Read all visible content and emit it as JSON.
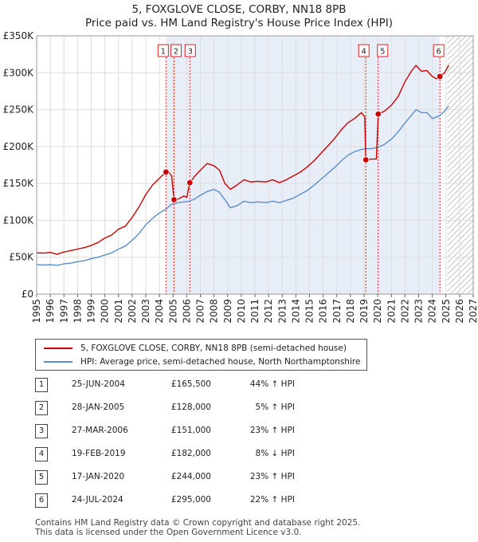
{
  "chart_data": {
    "type": "line",
    "title": "5, FOXGLOVE CLOSE, CORBY, NN18 8PB",
    "subtitle": "Price paid vs. HM Land Registry's House Price Index (HPI)",
    "xlim": [
      1995,
      2027
    ],
    "ylim": [
      0,
      350000
    ],
    "x_ticks": [
      1995,
      1996,
      1997,
      1998,
      1999,
      2000,
      2001,
      2002,
      2003,
      2004,
      2005,
      2006,
      2007,
      2008,
      2009,
      2010,
      2011,
      2012,
      2013,
      2014,
      2015,
      2016,
      2017,
      2018,
      2019,
      2020,
      2021,
      2022,
      2023,
      2024,
      2025,
      2026,
      2027
    ],
    "y_ticks": [
      0,
      50000,
      100000,
      150000,
      200000,
      250000,
      300000,
      350000
    ],
    "y_tick_labels": [
      "£0",
      "£50K",
      "£100K",
      "£150K",
      "£200K",
      "£250K",
      "£300K",
      "£350K"
    ],
    "grid": true,
    "shaded_region": {
      "from": 2004.48,
      "to": 2024.56
    },
    "future_hatch_from": 2025.1,
    "series": [
      {
        "name": "5, FOXGLOVE CLOSE, CORBY, NN18 8PB (semi-detached house)",
        "color": "#cc0000",
        "points": [
          [
            1995.0,
            56000
          ],
          [
            1995.5,
            55500
          ],
          [
            1996.0,
            56500
          ],
          [
            1996.5,
            54000
          ],
          [
            1997.0,
            57000
          ],
          [
            1997.5,
            59000
          ],
          [
            1998.0,
            61000
          ],
          [
            1998.5,
            63000
          ],
          [
            1999.0,
            66000
          ],
          [
            1999.5,
            70000
          ],
          [
            2000.0,
            76000
          ],
          [
            2000.5,
            80000
          ],
          [
            2001.0,
            88000
          ],
          [
            2001.5,
            92000
          ],
          [
            2002.0,
            104000
          ],
          [
            2002.5,
            118000
          ],
          [
            2003.0,
            135000
          ],
          [
            2003.5,
            148000
          ],
          [
            2004.0,
            157000
          ],
          [
            2004.48,
            165500
          ],
          [
            2004.6,
            168000
          ],
          [
            2004.9,
            160000
          ],
          [
            2005.07,
            128000
          ],
          [
            2005.4,
            129000
          ],
          [
            2005.8,
            133000
          ],
          [
            2006.0,
            131000
          ],
          [
            2006.23,
            151000
          ],
          [
            2006.6,
            160000
          ],
          [
            2007.0,
            168000
          ],
          [
            2007.5,
            177000
          ],
          [
            2008.0,
            174000
          ],
          [
            2008.4,
            168000
          ],
          [
            2008.8,
            150000
          ],
          [
            2009.2,
            142000
          ],
          [
            2009.7,
            148000
          ],
          [
            2010.2,
            155000
          ],
          [
            2010.7,
            152000
          ],
          [
            2011.2,
            153000
          ],
          [
            2011.8,
            152000
          ],
          [
            2012.3,
            155000
          ],
          [
            2012.8,
            151000
          ],
          [
            2013.3,
            155000
          ],
          [
            2013.8,
            160000
          ],
          [
            2014.3,
            165000
          ],
          [
            2014.8,
            172000
          ],
          [
            2015.3,
            180000
          ],
          [
            2015.8,
            190000
          ],
          [
            2016.3,
            200000
          ],
          [
            2016.8,
            210000
          ],
          [
            2017.3,
            222000
          ],
          [
            2017.8,
            232000
          ],
          [
            2018.3,
            238000
          ],
          [
            2018.8,
            246000
          ],
          [
            2019.05,
            240000
          ],
          [
            2019.13,
            182000
          ],
          [
            2019.5,
            183000
          ],
          [
            2019.9,
            183000
          ],
          [
            2020.04,
            244000
          ],
          [
            2020.5,
            248000
          ],
          [
            2021.0,
            256000
          ],
          [
            2021.5,
            268000
          ],
          [
            2022.0,
            288000
          ],
          [
            2022.5,
            303000
          ],
          [
            2022.8,
            310000
          ],
          [
            2023.2,
            302000
          ],
          [
            2023.6,
            303000
          ],
          [
            2024.0,
            295000
          ],
          [
            2024.3,
            292000
          ],
          [
            2024.56,
            295000
          ],
          [
            2024.9,
            300000
          ],
          [
            2025.2,
            310000
          ]
        ]
      },
      {
        "name": "HPI: Average price, semi-detached house, North Northamptonshire",
        "color": "#5b8fc9",
        "points": [
          [
            1995.0,
            40000
          ],
          [
            1995.5,
            39500
          ],
          [
            1996.0,
            40000
          ],
          [
            1996.5,
            39000
          ],
          [
            1997.0,
            41000
          ],
          [
            1997.5,
            42000
          ],
          [
            1998.0,
            44000
          ],
          [
            1998.5,
            45500
          ],
          [
            1999.0,
            48000
          ],
          [
            1999.5,
            50000
          ],
          [
            2000.0,
            53000
          ],
          [
            2000.5,
            56000
          ],
          [
            2001.0,
            61000
          ],
          [
            2001.5,
            65000
          ],
          [
            2002.0,
            73000
          ],
          [
            2002.5,
            82000
          ],
          [
            2003.0,
            94000
          ],
          [
            2003.5,
            103000
          ],
          [
            2004.0,
            110000
          ],
          [
            2004.48,
            115000
          ],
          [
            2004.9,
            122000
          ],
          [
            2005.4,
            124000
          ],
          [
            2005.8,
            125000
          ],
          [
            2006.2,
            126000
          ],
          [
            2006.6,
            129000
          ],
          [
            2007.0,
            134000
          ],
          [
            2007.5,
            139000
          ],
          [
            2008.0,
            142000
          ],
          [
            2008.4,
            138000
          ],
          [
            2008.8,
            128000
          ],
          [
            2009.2,
            117000
          ],
          [
            2009.7,
            120000
          ],
          [
            2010.2,
            126000
          ],
          [
            2010.7,
            124000
          ],
          [
            2011.2,
            125000
          ],
          [
            2011.8,
            124000
          ],
          [
            2012.3,
            126000
          ],
          [
            2012.8,
            124000
          ],
          [
            2013.3,
            127000
          ],
          [
            2013.8,
            130000
          ],
          [
            2014.3,
            135000
          ],
          [
            2014.8,
            140000
          ],
          [
            2015.3,
            147000
          ],
          [
            2015.8,
            155000
          ],
          [
            2016.3,
            163000
          ],
          [
            2016.8,
            171000
          ],
          [
            2017.3,
            180000
          ],
          [
            2017.8,
            188000
          ],
          [
            2018.3,
            193000
          ],
          [
            2018.8,
            196000
          ],
          [
            2019.13,
            197000
          ],
          [
            2019.5,
            197000
          ],
          [
            2020.0,
            199000
          ],
          [
            2020.5,
            203000
          ],
          [
            2021.0,
            210000
          ],
          [
            2021.5,
            220000
          ],
          [
            2022.0,
            232000
          ],
          [
            2022.5,
            243000
          ],
          [
            2022.8,
            250000
          ],
          [
            2023.2,
            246000
          ],
          [
            2023.6,
            246000
          ],
          [
            2024.0,
            238000
          ],
          [
            2024.3,
            240000
          ],
          [
            2024.56,
            242000
          ],
          [
            2024.9,
            248000
          ],
          [
            2025.2,
            255000
          ]
        ]
      }
    ],
    "sales": [
      {
        "label": "1",
        "date": "25-JUN-2004",
        "x": 2004.48,
        "price": 165500,
        "price_text": "£165,500",
        "hpi_text": "44% ↑ HPI"
      },
      {
        "label": "2",
        "date": "28-JAN-2005",
        "x": 2005.07,
        "price": 128000,
        "price_text": "£128,000",
        "hpi_text": "5% ↑ HPI"
      },
      {
        "label": "3",
        "date": "27-MAR-2006",
        "x": 2006.23,
        "price": 151000,
        "price_text": "£151,000",
        "hpi_text": "23% ↑ HPI"
      },
      {
        "label": "4",
        "date": "19-FEB-2019",
        "x": 2019.13,
        "price": 182000,
        "price_text": "£182,000",
        "hpi_text": "8% ↓ HPI"
      },
      {
        "label": "5",
        "date": "17-JAN-2020",
        "x": 2020.04,
        "price": 244000,
        "price_text": "£244,000",
        "hpi_text": "23% ↑ HPI"
      },
      {
        "label": "6",
        "date": "24-JUL-2024",
        "x": 2024.56,
        "price": 295000,
        "price_text": "£295,000",
        "hpi_text": "22% ↑ HPI"
      }
    ]
  },
  "legend": {
    "property_label": "5, FOXGLOVE CLOSE, CORBY, NN18 8PB (semi-detached house)",
    "hpi_label": "HPI: Average price, semi-detached house, North Northamptonshire"
  },
  "footer": {
    "line1": "Contains HM Land Registry data © Crown copyright and database right 2025.",
    "line2": "This data is licensed under the Open Government Licence v3.0."
  }
}
